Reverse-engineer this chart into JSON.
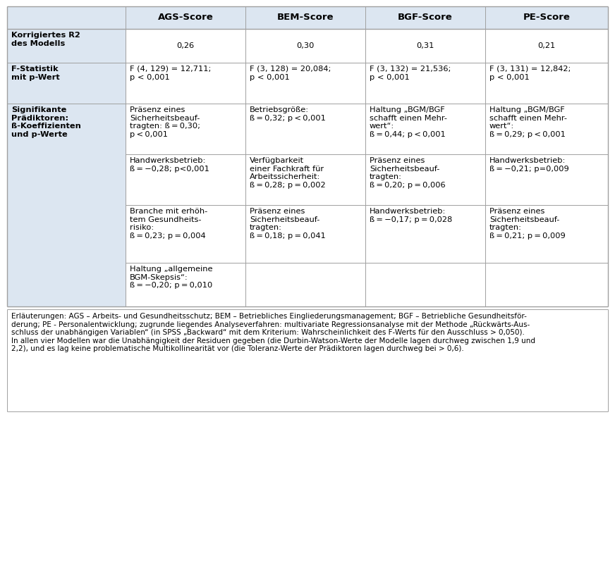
{
  "headers": [
    "",
    "AGS-Score",
    "BEM-Score",
    "BGF-Score",
    "PE-Score"
  ],
  "row1_label": "Korrigiertes R2\ndes Modells",
  "row1_data": [
    "0,26",
    "0,30",
    "0,31",
    "0,21"
  ],
  "row2_label": "F-Statistik\nmit p-Wert",
  "row2_data": [
    "F (4, 129) = 12,711;\np < 0,001",
    "F (3, 128) = 20,084;\np < 0,001",
    "F (3, 132) = 21,536;\np < 0,001",
    "F (3, 131) = 12,842;\np < 0,001"
  ],
  "row3_label": "Signifikante\nPrädiktoren:\nß-Koeffizienten\nund p-Werte",
  "row3_sub1": [
    "Präsenz eines\nSicherheitsbeauf-\ntragten: ß = 0,30;\np < 0,001",
    "Betriebsgröße:\nß = 0,32; p < 0,001",
    "Haltung „BGM/BGF\nschafft einen Mehr-\nwert“:\nß = 0,44; p < 0,001",
    "Haltung „BGM/BGF\nschafft einen Mehr-\nwert“:\nß = 0,29; p < 0,001"
  ],
  "row3_sub2": [
    "Handwerksbetrieb:\nß = −0,28; p<0,001",
    "Verfügbarkeit\neiner Fachkraft für\nArbeitssicherheit:\nß = 0,28; p = 0,002",
    "Präsenz eines\nSicherheitsbeauf-\ntragten:\nß = 0,20; p = 0,006",
    "Handwerksbetrieb:\nß = −0,21; p=0,009"
  ],
  "row3_sub3": [
    "Branche mit erhöh-\ntem Gesundheits-\nrisiko:\nß = 0,23; p = 0,004",
    "Präsenz eines\nSicherheitsbeauf-\ntragten:\nß = 0,18; p = 0,041",
    "Handwerksbetrieb:\nß = −0,17; p = 0,028",
    "Präsenz eines\nSicherheitsbeauf-\ntragten:\nß = 0,21; p = 0,009"
  ],
  "row3_sub4": [
    "Haltung „allgemeine\nBGM-Skepsis“:\nß = −0,20; p = 0,010",
    "",
    "",
    ""
  ],
  "footer_line1": "Erläuterungen: AGS – Arbeits- und Gesundheitsschutz; BEM – Betriebliches Eingliederungsmanagement; BGF – Betriebliche Gesundheitsför-",
  "footer_line2": "derung; PE - Personalentwicklung; zugrunde liegendes Analyseverfahren: multivariate Regressionsanalyse mit der Methode „Rückwärts-Aus-",
  "footer_line3": "schluss der unabhängigen Variablen“ (in SPSS „Backward“ mit dem Kriterium: Wahrscheinlichkeit des F-Werts für den Ausschluss > 0,050).",
  "footer_line4": "In allen vier Modellen war die Unabhängigkeit der Residuen gegeben (die Durbin-Watson-Werte der Modelle lagen durchweg zwischen 1,9 und",
  "footer_line5": "2,2), und es lag keine problematische Multikollinearität vor (die Toleranz-Werte der Prädiktoren lagen durchweg bei > 0,6).",
  "bg_blue": "#dce6f1",
  "bg_white": "#ffffff",
  "border_color": "#a0a0a0",
  "text_color": "#000000",
  "fs_header": 9.5,
  "fs_body": 8.2,
  "fs_footer": 7.5
}
